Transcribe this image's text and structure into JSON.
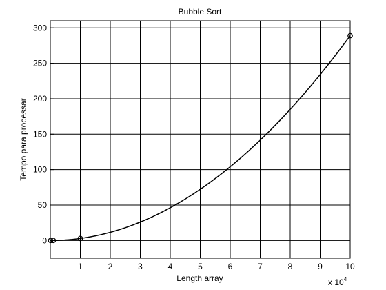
{
  "chart_data": {
    "type": "line",
    "title": "Bubble Sort",
    "xlabel": "Length array",
    "ylabel": "Tempo para processar",
    "x_multiplier": {
      "base": "x 10",
      "exponent": "4"
    },
    "xlim": [
      0,
      10
    ],
    "ylim": [
      -25,
      310
    ],
    "xticks": [
      1,
      2,
      3,
      4,
      5,
      6,
      7,
      8,
      9,
      10
    ],
    "xtick_labels": [
      "1",
      "2",
      "3",
      "4",
      "5",
      "6",
      "7",
      "8",
      "9",
      "10"
    ],
    "yticks": [
      0,
      50,
      100,
      150,
      200,
      250,
      300
    ],
    "ytick_labels": [
      "0",
      "50",
      "100",
      "150",
      "200",
      "250",
      "300"
    ],
    "grid": true,
    "series": [
      {
        "name": "Bubble Sort",
        "x": [
          0.01,
          0.1,
          1,
          10
        ],
        "y": [
          0,
          0.03,
          2.9,
          289
        ],
        "marker": "circle",
        "fit": "quadratic"
      }
    ],
    "colors": {
      "line": "#000000",
      "grid": "#000000",
      "background": "#ffffff"
    }
  }
}
